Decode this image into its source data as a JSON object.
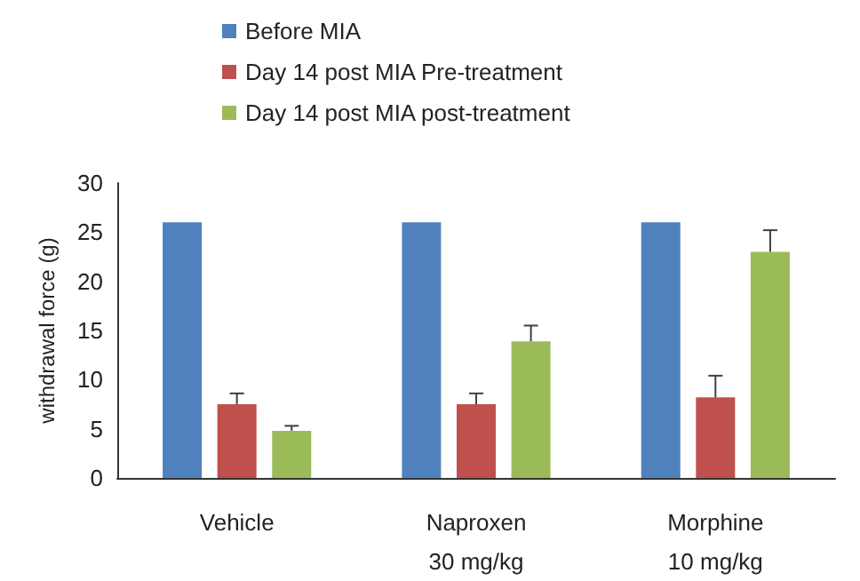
{
  "chart_data": {
    "type": "bar",
    "ylabel": "withdrawal force (g)",
    "categories": [
      "Vehicle",
      "Naproxen\n30 mg/kg",
      "Morphine\n10 mg/kg"
    ],
    "series": [
      {
        "name": "Before MIA",
        "color": "#4f81bd",
        "values": [
          26,
          26,
          26
        ]
      },
      {
        "name": "Day 14 post MIA Pre-treatment",
        "color": "#c0504d",
        "values": [
          7.5,
          7.5,
          8.2
        ],
        "errors": [
          1.1,
          1.1,
          2.2
        ]
      },
      {
        "name": "Day 14 post MIA post-treatment",
        "color": "#9bbb59",
        "values": [
          4.8,
          13.9,
          23
        ],
        "errors": [
          0.5,
          1.6,
          2.2
        ]
      }
    ],
    "ylim": [
      0,
      30
    ],
    "yticks": [
      0,
      5,
      10,
      15,
      20,
      25,
      30
    ],
    "grid": false,
    "legend": "top"
  }
}
